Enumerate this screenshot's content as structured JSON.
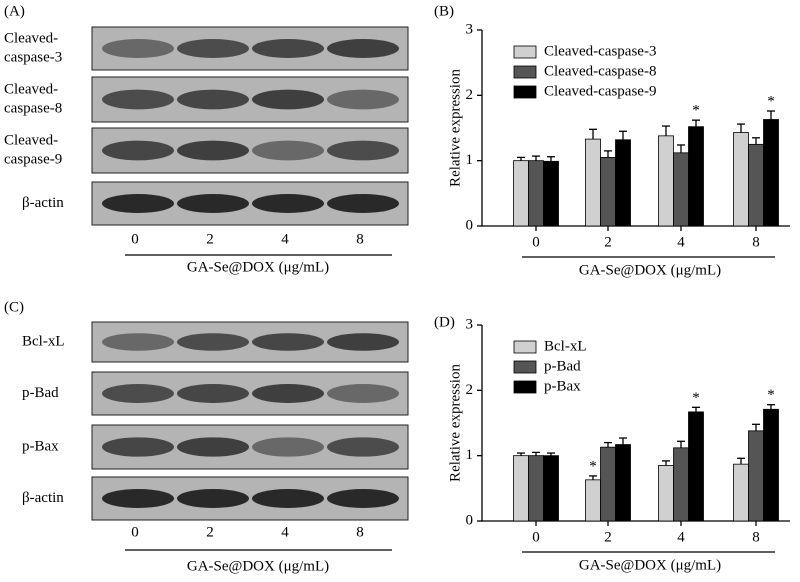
{
  "blots": [
    {
      "panel": "(A)",
      "rows": [
        [
          "Cleaved-",
          "caspase-3"
        ],
        [
          "Cleaved-",
          "caspase-8"
        ],
        [
          "Cleaved-",
          "caspase-9"
        ],
        [
          "β-actin"
        ]
      ],
      "lanes": [
        "0",
        "2",
        "4",
        "8"
      ],
      "xlabel": "GA-Se@DOX (μg/mL)"
    },
    {
      "panel": "(C)",
      "rows": [
        [
          "Bcl-xL"
        ],
        [
          "p-Bad"
        ],
        [
          "p-Bax"
        ],
        [
          "β-actin"
        ]
      ],
      "lanes": [
        "0",
        "2",
        "4",
        "8"
      ],
      "xlabel": "GA-Se@DOX (μg/mL)"
    }
  ],
  "chart_data": [
    {
      "type": "bar",
      "panel": "(B)",
      "ylabel": "Relative expression",
      "xlabel": "GA-Se@DOX (μg/mL)",
      "categories": [
        "0",
        "2",
        "4",
        "8"
      ],
      "ylim": [
        0,
        3
      ],
      "yticks": [
        0,
        1,
        2,
        3
      ],
      "legend": "top-left",
      "series": [
        {
          "name": "Cleaved-caspase-3",
          "color": "#d0d0d0",
          "values": [
            1.0,
            1.33,
            1.38,
            1.43
          ],
          "errors": [
            0.05,
            0.15,
            0.15,
            0.13
          ],
          "significance": [
            null,
            null,
            null,
            null
          ]
        },
        {
          "name": "Cleaved-caspase-8",
          "color": "#555555",
          "values": [
            1.0,
            1.05,
            1.12,
            1.25
          ],
          "errors": [
            0.07,
            0.1,
            0.12,
            0.1
          ],
          "significance": [
            null,
            null,
            null,
            null
          ]
        },
        {
          "name": "Cleaved-caspase-9",
          "color": "#000000",
          "values": [
            0.99,
            1.32,
            1.52,
            1.63
          ],
          "errors": [
            0.07,
            0.13,
            0.1,
            0.13
          ],
          "significance": [
            null,
            null,
            "*",
            "*"
          ]
        }
      ]
    },
    {
      "type": "bar",
      "panel": "(D)",
      "ylabel": "Relative expression",
      "xlabel": "GA-Se@DOX (μg/mL)",
      "categories": [
        "0",
        "2",
        "4",
        "8"
      ],
      "ylim": [
        0,
        3
      ],
      "yticks": [
        0,
        1,
        2,
        3
      ],
      "legend": "top-left",
      "series": [
        {
          "name": "Bcl-xL",
          "color": "#d0d0d0",
          "values": [
            1.0,
            0.63,
            0.85,
            0.87
          ],
          "errors": [
            0.04,
            0.06,
            0.07,
            0.09
          ],
          "significance": [
            null,
            "*",
            null,
            null
          ]
        },
        {
          "name": "p-Bad",
          "color": "#555555",
          "values": [
            1.0,
            1.13,
            1.12,
            1.38
          ],
          "errors": [
            0.05,
            0.07,
            0.1,
            0.1
          ],
          "significance": [
            null,
            null,
            null,
            null
          ]
        },
        {
          "name": "p-Bax",
          "color": "#000000",
          "values": [
            1.0,
            1.17,
            1.67,
            1.71
          ],
          "errors": [
            0.04,
            0.1,
            0.07,
            0.07
          ],
          "significance": [
            null,
            null,
            "*",
            "*"
          ]
        }
      ]
    }
  ]
}
